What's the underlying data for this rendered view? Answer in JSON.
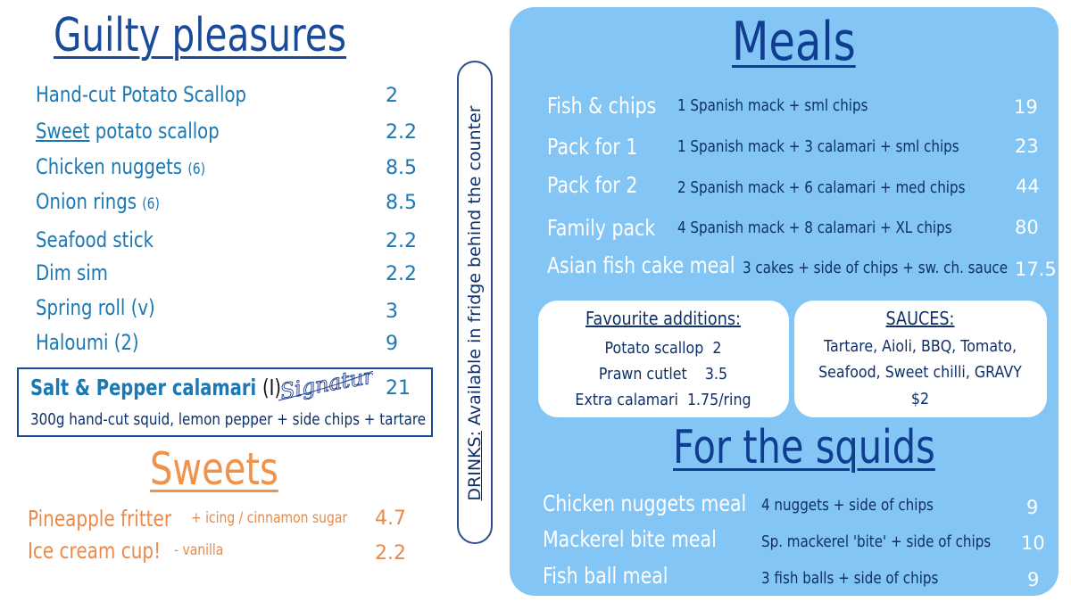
{
  "guilty": {
    "title": "Guilty pleasures",
    "items": [
      {
        "name": "Hand-cut Potato Scallop",
        "price": "2"
      },
      {
        "name_underlined": "Sweet",
        "name_rest": " potato scallop",
        "price": "2.2"
      },
      {
        "name": "Chicken nuggets",
        "qty": "(6)",
        "price": "8.5"
      },
      {
        "name": "Onion rings",
        "qty": "(6)",
        "price": "8.5"
      },
      {
        "name": "Seafood stick",
        "price": "2.2"
      },
      {
        "name": "Dim sim",
        "price": "2.2"
      },
      {
        "name": "Spring roll (v)",
        "price": "3"
      },
      {
        "name": "Haloumi (2)",
        "price": "9"
      }
    ],
    "signature_item": {
      "name": "Salt & Pepper calamari",
      "mark": "(I)",
      "signature_text": "Signature",
      "description": "300g hand-cut squid, lemon pepper + side chips + tartare",
      "price": "21"
    }
  },
  "sweets": {
    "title": "Sweets",
    "items": [
      {
        "name": "Pineapple fritter",
        "note": "+ icing / cinnamon sugar",
        "price": "4.7"
      },
      {
        "name": "Ice cream cup!",
        "note": "- vanilla",
        "price": "2.2"
      }
    ]
  },
  "drinks": {
    "label": "DRINKS:",
    "text": "Available in fridge behind the counter"
  },
  "meals": {
    "title": "Meals",
    "items": [
      {
        "name": "Fish & chips",
        "description": "1 Spanish mack + sml chips",
        "price": "19"
      },
      {
        "name": "Pack for 1",
        "description": "1 Spanish mack + 3 calamari + sml chips",
        "price": "23"
      },
      {
        "name": "Pack for 2",
        "description": "2 Spanish mack + 6 calamari + med chips",
        "price": "44"
      },
      {
        "name": "Family pack",
        "description": "4 Spanish mack + 8 calamari + XL chips",
        "price": "80"
      },
      {
        "name": "Asian fish cake meal",
        "description": "3 cakes + side of chips + sw. ch. sauce",
        "price": "17.5"
      }
    ]
  },
  "additions": {
    "title": "Favourite additions:",
    "items": [
      {
        "name": "Potato scallop",
        "price": "2"
      },
      {
        "name": "Prawn cutlet",
        "price": "3.5"
      },
      {
        "name": "Extra calamari",
        "price": "1.75/ring"
      }
    ]
  },
  "sauces": {
    "title": "SAUCES:",
    "line1": "Tartare, Aioli, BBQ, Tomato,",
    "line2": "Seafood, Sweet chilli, GRAVY",
    "price": "$2"
  },
  "squids": {
    "title": "For the squids",
    "items": [
      {
        "name": "Chicken nuggets meal",
        "description": "4 nuggets + side of chips",
        "price": "9"
      },
      {
        "name": "Mackerel bite meal",
        "description": "Sp. mackerel 'bite' + side of chips",
        "price": "10"
      },
      {
        "name": "Fish ball meal",
        "description": "3 fish balls + side of chips",
        "price": "9"
      }
    ]
  },
  "colors": {
    "navy": "#1a4a9a",
    "blue_text": "#1a78b4",
    "orange": "#ea8a4a",
    "panel": "#83c5f4"
  }
}
